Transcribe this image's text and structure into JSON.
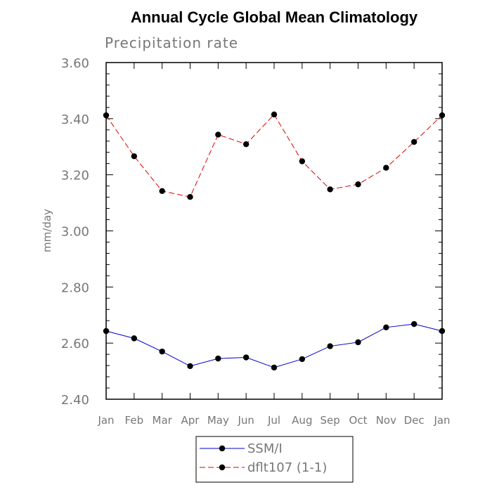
{
  "chart_data": {
    "type": "line",
    "title": "Annual Cycle Global Mean Climatology",
    "subtitle": "Precipitation rate",
    "xlabel": "",
    "ylabel": "mm/day",
    "categories": [
      "Jan",
      "Feb",
      "Mar",
      "Apr",
      "May",
      "Jun",
      "Jul",
      "Aug",
      "Sep",
      "Oct",
      "Nov",
      "Dec",
      "Jan"
    ],
    "ylim": [
      2.4,
      3.6
    ],
    "yticks": [
      "2.40",
      "2.60",
      "2.80",
      "3.00",
      "3.20",
      "3.40",
      "3.60"
    ],
    "ytick_values": [
      2.4,
      2.6,
      2.8,
      3.0,
      3.2,
      3.4,
      3.6
    ],
    "grid": false,
    "legend_position": "bottom-center",
    "series": [
      {
        "name": "SSM/I",
        "color": "#0000cc",
        "line_style": "solid",
        "values": [
          2.643,
          2.617,
          2.57,
          2.518,
          2.545,
          2.549,
          2.513,
          2.543,
          2.589,
          2.603,
          2.656,
          2.668,
          2.643
        ]
      },
      {
        "name": "dflt107 (1-1)",
        "color": "#dd0000",
        "line_style": "dashed",
        "values": [
          3.412,
          3.266,
          3.142,
          3.121,
          3.343,
          3.309,
          3.415,
          3.248,
          3.148,
          3.166,
          3.225,
          3.317,
          3.412
        ]
      }
    ]
  }
}
